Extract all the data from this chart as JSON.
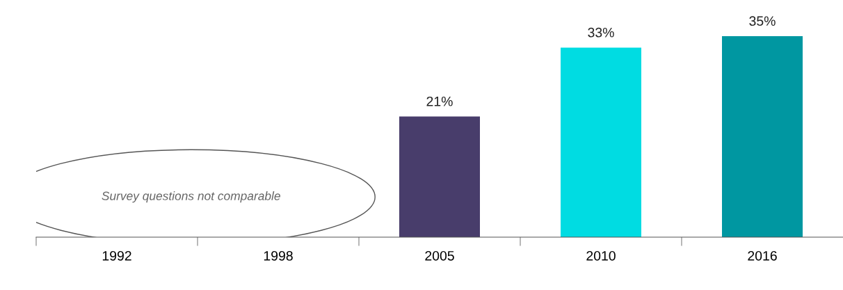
{
  "chart_data": {
    "type": "bar",
    "categories": [
      "1992",
      "1998",
      "2005",
      "2010",
      "2016"
    ],
    "values": [
      null,
      null,
      21,
      33,
      35
    ],
    "colors": [
      "#483d6b",
      "#483d6b",
      "#483d6b",
      "#00dce2",
      "#0097a1"
    ],
    "value_labels": [
      null,
      null,
      "21%",
      "33%",
      "35%"
    ],
    "annotations": [
      "Survey questions not comparable"
    ],
    "grid": false,
    "legend": false
  }
}
